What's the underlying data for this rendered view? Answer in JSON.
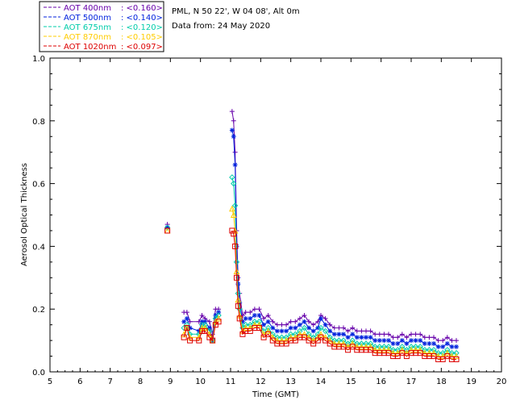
{
  "chart_data": {
    "type": "scatter",
    "title": "PML, N 50 22', W 04 08', Alt 0m",
    "subtitle": "Data from: 24 May 2020",
    "xlabel": "Time (GMT)",
    "ylabel": "Aerosol Optical Thickness",
    "xlim": [
      5,
      20
    ],
    "ylim": [
      0.0,
      1.0
    ],
    "xticks": [
      "5",
      "6",
      "7",
      "8",
      "9",
      "10",
      "11",
      "12",
      "13",
      "14",
      "15",
      "16",
      "17",
      "18",
      "19",
      "20"
    ],
    "yticks": [
      "0.0",
      "0.2",
      "0.4",
      "0.6",
      "0.8",
      "1.0"
    ],
    "x": [
      8.9,
      9.45,
      9.55,
      9.65,
      9.95,
      10.05,
      10.15,
      10.3,
      10.4,
      10.5,
      10.6,
      11.05,
      11.1,
      11.15,
      11.2,
      11.25,
      11.3,
      11.4,
      11.5,
      11.65,
      11.8,
      11.95,
      12.1,
      12.25,
      12.4,
      12.55,
      12.7,
      12.85,
      13.0,
      13.15,
      13.3,
      13.45,
      13.6,
      13.75,
      13.9,
      14.0,
      14.15,
      14.3,
      14.45,
      14.6,
      14.75,
      14.9,
      15.05,
      15.2,
      15.35,
      15.5,
      15.65,
      15.8,
      15.95,
      16.1,
      16.25,
      16.4,
      16.55,
      16.7,
      16.85,
      17.0,
      17.15,
      17.3,
      17.45,
      17.6,
      17.75,
      17.9,
      18.05,
      18.2,
      18.35,
      18.5
    ],
    "series": [
      {
        "name": "AOT  400nm",
        "mean_label": "<0.160>",
        "color": "#6600aa",
        "values": [
          0.47,
          0.19,
          0.19,
          0.16,
          0.16,
          0.18,
          0.17,
          0.16,
          0.12,
          0.2,
          0.2,
          0.83,
          0.8,
          0.7,
          0.45,
          0.3,
          0.25,
          0.18,
          0.19,
          0.19,
          0.2,
          0.2,
          0.17,
          0.18,
          0.16,
          0.15,
          0.15,
          0.15,
          0.16,
          0.16,
          0.17,
          0.18,
          0.16,
          0.15,
          0.16,
          0.18,
          0.17,
          0.15,
          0.14,
          0.14,
          0.14,
          0.13,
          0.14,
          0.13,
          0.13,
          0.13,
          0.13,
          0.12,
          0.12,
          0.12,
          0.12,
          0.11,
          0.11,
          0.12,
          0.11,
          0.12,
          0.12,
          0.12,
          0.11,
          0.11,
          0.11,
          0.1,
          0.1,
          0.11,
          0.1,
          0.1
        ]
      },
      {
        "name": "AOT  500nm",
        "mean_label": "<0.140>",
        "color": "#0022dd",
        "values": [
          0.46,
          0.16,
          0.17,
          0.14,
          0.13,
          0.16,
          0.16,
          0.14,
          0.1,
          0.18,
          0.19,
          0.77,
          0.75,
          0.66,
          0.4,
          0.28,
          0.22,
          0.16,
          0.17,
          0.17,
          0.18,
          0.18,
          0.15,
          0.16,
          0.14,
          0.13,
          0.13,
          0.13,
          0.14,
          0.14,
          0.15,
          0.16,
          0.14,
          0.13,
          0.14,
          0.17,
          0.15,
          0.13,
          0.12,
          0.12,
          0.12,
          0.11,
          0.12,
          0.11,
          0.11,
          0.11,
          0.11,
          0.1,
          0.1,
          0.1,
          0.1,
          0.09,
          0.09,
          0.1,
          0.09,
          0.1,
          0.1,
          0.1,
          0.09,
          0.09,
          0.09,
          0.08,
          0.08,
          0.09,
          0.08,
          0.08
        ]
      },
      {
        "name": "AOT  675nm",
        "mean_label": "<0.120>",
        "color": "#00ccaa",
        "values": [
          0.46,
          0.14,
          0.15,
          0.12,
          0.12,
          0.15,
          0.15,
          0.13,
          0.1,
          0.17,
          0.18,
          0.62,
          0.6,
          0.53,
          0.35,
          0.25,
          0.2,
          0.14,
          0.15,
          0.15,
          0.16,
          0.16,
          0.13,
          0.14,
          0.12,
          0.11,
          0.11,
          0.11,
          0.12,
          0.12,
          0.13,
          0.14,
          0.12,
          0.11,
          0.12,
          0.14,
          0.13,
          0.11,
          0.1,
          0.1,
          0.1,
          0.09,
          0.1,
          0.09,
          0.09,
          0.09,
          0.09,
          0.08,
          0.08,
          0.08,
          0.08,
          0.07,
          0.07,
          0.08,
          0.07,
          0.08,
          0.08,
          0.08,
          0.07,
          0.07,
          0.07,
          0.06,
          0.06,
          0.07,
          0.06,
          0.06
        ]
      },
      {
        "name": "AOT  870nm",
        "mean_label": "<0.105>",
        "color": "#ffcc00",
        "values": [
          0.45,
          0.12,
          0.14,
          0.11,
          0.11,
          0.14,
          0.14,
          0.12,
          0.1,
          0.16,
          0.17,
          0.52,
          0.5,
          0.45,
          0.32,
          0.23,
          0.18,
          0.13,
          0.14,
          0.14,
          0.15,
          0.15,
          0.12,
          0.13,
          0.11,
          0.1,
          0.1,
          0.1,
          0.11,
          0.11,
          0.12,
          0.12,
          0.11,
          0.1,
          0.11,
          0.12,
          0.11,
          0.1,
          0.09,
          0.09,
          0.09,
          0.08,
          0.09,
          0.08,
          0.08,
          0.08,
          0.08,
          0.07,
          0.07,
          0.07,
          0.07,
          0.06,
          0.06,
          0.07,
          0.06,
          0.07,
          0.07,
          0.07,
          0.06,
          0.06,
          0.06,
          0.05,
          0.05,
          0.06,
          0.05,
          0.05
        ]
      },
      {
        "name": "AOT 1020nm",
        "mean_label": "<0.097>",
        "color": "#dd0000",
        "values": [
          0.45,
          0.11,
          0.14,
          0.1,
          0.1,
          0.13,
          0.13,
          0.11,
          0.1,
          0.15,
          0.16,
          0.45,
          0.44,
          0.4,
          0.3,
          0.21,
          0.17,
          0.12,
          0.13,
          0.13,
          0.14,
          0.14,
          0.11,
          0.12,
          0.1,
          0.09,
          0.09,
          0.09,
          0.1,
          0.1,
          0.11,
          0.11,
          0.1,
          0.09,
          0.1,
          0.11,
          0.1,
          0.09,
          0.08,
          0.08,
          0.08,
          0.07,
          0.08,
          0.07,
          0.07,
          0.07,
          0.07,
          0.06,
          0.06,
          0.06,
          0.06,
          0.05,
          0.05,
          0.06,
          0.05,
          0.06,
          0.06,
          0.06,
          0.05,
          0.05,
          0.05,
          0.04,
          0.04,
          0.05,
          0.04,
          0.04
        ]
      }
    ],
    "grid": false,
    "legend": "top-left"
  }
}
